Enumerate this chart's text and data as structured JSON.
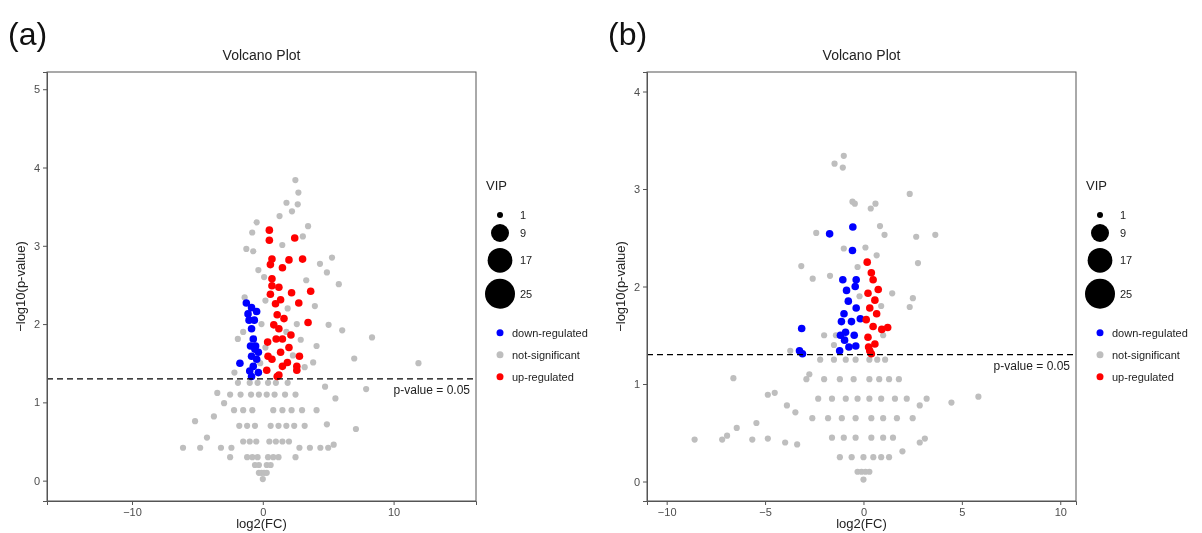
{
  "chart_data": [
    {
      "type": "bubble",
      "title": "Volcano Plot",
      "xlabel": "log2(FC)",
      "ylabel": "−log10(p-value)",
      "legend_title": "VIP",
      "annotations": [
        "(a)",
        "p-value = 0.05"
      ],
      "xlim": [
        -16.5,
        16.3
      ],
      "ylim": [
        -0.26,
        5.22
      ],
      "xticks": [
        -10,
        0,
        10
      ],
      "yticks": [
        0,
        1,
        2,
        3,
        4,
        5
      ],
      "size_legend": [
        1,
        9,
        17,
        25
      ],
      "legend": "right",
      "grid": false,
      "ref_lines": [
        {
          "axis": "y",
          "value": 1.301,
          "line_style": "dashed",
          "color": "#000000"
        }
      ],
      "series": [
        {
          "name": "down-regulated",
          "color": "#0000ff",
          "x": [
            -1.26,
            -0.86,
            -0.47,
            -1.13,
            -1.05,
            -0.65,
            -1.75,
            -0.86,
            -0.73,
            -0.6,
            -0.86,
            -0.47,
            -0.73,
            -0.34,
            -0.86,
            -0.55,
            -0.94,
            -0.34,
            -1.0
          ],
          "values": [
            2.27,
            2.21,
            2.16,
            2.13,
            2.05,
            2.05,
            1.5,
            1.94,
            1.81,
            1.68,
            1.59,
            1.55,
            1.46,
            1.38,
            1.33,
            1.72,
            1.72,
            1.64,
            1.4
          ],
          "sizes": [
            1.6,
            1.6,
            1.6,
            1.6,
            1.6,
            1.6,
            1.6,
            1.6,
            1.6,
            1.6,
            1.6,
            1.6,
            1.6,
            1.6,
            1.6,
            1.6,
            1.6,
            1.6,
            1.6
          ]
        },
        {
          "name": "not-significant",
          "type": "scatter",
          "color": "#bebebe",
          "x": [
            2.49,
            2.72,
            1.81,
            2.67,
            2.23,
            1.28,
            -0.47,
            3.46,
            -0.81,
            -1.26,
            5.29,
            4.9,
            5.81,
            4.37,
            8.35,
            11.9,
            6.99,
            6.07,
            5.03,
            7.12,
            7.9,
            -6.1,
            -5.18,
            -4.79,
            -3.48,
            -3.74,
            -4.27,
            5.42,
            4.9,
            5.55,
            4.76,
            4.11,
            -2.96,
            -2.17,
            -1.91,
            -1.39,
            -0.34,
            -0.73,
            1.49,
            3.06,
            3.32,
            3.98,
            4.11,
            3.85,
            0,
            -0.3,
            -0.1,
            0.1,
            0.3,
            -0.6,
            -0.3,
            0.3,
            0.6,
            -1.2,
            -0.8,
            -0.4,
            0.4,
            0.8,
            1.2,
            -2.5,
            2.5,
            -3.2,
            -2.4,
            2.8,
            3.6,
            4.4,
            5.0,
            -1.5,
            -1,
            -0.5,
            0.5,
            1,
            1.5,
            2,
            -1.8,
            -1.2,
            -0.6,
            0.6,
            1.2,
            1.8,
            2.4,
            3.2,
            -2.2,
            -1.5,
            -0.8,
            0.8,
            1.5,
            2.2,
            3.0,
            -2.5,
            -1.7,
            -0.9,
            -0.3,
            0.3,
            0.9,
            1.7,
            2.5,
            -1.9,
            -1.0,
            -0.4,
            0.4,
            1.0,
            1.9,
            -0.2,
            0.2,
            -0.1,
            0.2,
            1.8,
            2.3,
            2.6,
            0.1,
            1.9,
            -1.5,
            2.9,
            3.2
          ],
          "values": [
            3.84,
            3.68,
            3.55,
            3.53,
            3.44,
            3.38,
            3.3,
            3.25,
            3.17,
            2.96,
            2.85,
            2.66,
            2.51,
            2.77,
            1.83,
            1.5,
            1.56,
            1.92,
            1.99,
            0.66,
            1.17,
            0.42,
            0.76,
            0.42,
            1.12,
            0.82,
            0.55,
            0.46,
            0.72,
            1.05,
            1.2,
            0.9,
            0.99,
            1.38,
            1.81,
            2.34,
            2.69,
            2.93,
            3.01,
            3.12,
            2.56,
            2.23,
            1.72,
            1.51,
            0.02,
            0.1,
            0.1,
            0.1,
            0.1,
            0.2,
            0.2,
            0.2,
            0.2,
            0.3,
            0.3,
            0.3,
            0.3,
            0.3,
            0.3,
            0.3,
            0.3,
            0.42,
            0.42,
            0.42,
            0.42,
            0.42,
            0.42,
            0.5,
            0.5,
            0.5,
            0.5,
            0.5,
            0.5,
            0.5,
            0.7,
            0.7,
            0.7,
            0.7,
            0.7,
            0.7,
            0.7,
            0.7,
            0.9,
            0.9,
            0.9,
            0.9,
            0.9,
            0.9,
            0.9,
            1.1,
            1.1,
            1.1,
            1.1,
            1.1,
            1.1,
            1.1,
            1.1,
            1.25,
            1.25,
            1.25,
            1.25,
            1.25,
            1.25,
            1.5,
            1.7,
            2.0,
            2.3,
            1.9,
            1.6,
            2.0,
            2.6,
            2.2,
            1.9,
            1.8,
            1.45
          ]
        },
        {
          "name": "up-regulated",
          "color": "#ff0000",
          "x": [
            0.5,
            0.5,
            2.44,
            3.04,
            2.0,
            1.5,
            0.58,
            0.7,
            0.7,
            0.7,
            1.23,
            2.2,
            3.66,
            2.75,
            3.46,
            2.15,
            2.0,
            2.8,
            2.6,
            2.6,
            0.37,
            0.4,
            0.3,
            1.23,
            1.5,
            0.97,
            1.1,
            0.84,
            1.23,
            1.02,
            1.36,
            1.5,
            0.7,
            1.1,
            1.62,
            1.88,
            0.58,
            1.36
          ],
          "values": [
            3.2,
            3.07,
            3.1,
            2.83,
            2.82,
            2.72,
            2.76,
            2.83,
            2.58,
            2.49,
            2.47,
            2.4,
            2.42,
            2.27,
            2.02,
            1.86,
            1.7,
            1.59,
            1.46,
            1.41,
            1.77,
            1.59,
            1.41,
            1.35,
            1.46,
            2.26,
            2.12,
            1.99,
            1.94,
            1.81,
            1.64,
            1.81,
            1.55,
            1.33,
            2.07,
            1.51,
            2.38,
            2.31
          ],
          "sizes": [
            1.6,
            1.6,
            1.6,
            1.6,
            1.6,
            1.6,
            1.6,
            1.6,
            1.6,
            1.6,
            1.6,
            1.6,
            1.6,
            1.6,
            1.6,
            1.6,
            1.6,
            1.6,
            1.6,
            1.6,
            1.6,
            1.6,
            1.6,
            1.6,
            1.6,
            1.6,
            1.6,
            1.6,
            1.6,
            1.6,
            1.6,
            1.6,
            1.6,
            1.6,
            1.6,
            1.6,
            1.6,
            1.6
          ]
        }
      ]
    },
    {
      "type": "bubble",
      "title": "Volcano Plot",
      "xlabel": "log2(FC)",
      "ylabel": "−log10(p-value)",
      "legend_title": "VIP",
      "annotations": [
        "(b)",
        "p-value = 0.05"
      ],
      "xlim": [
        -11,
        10.8
      ],
      "ylim": [
        -0.2,
        4.2
      ],
      "xticks": [
        -10,
        -5,
        0,
        5,
        10
      ],
      "yticks": [
        0,
        1,
        2,
        3,
        4
      ],
      "size_legend": [
        1,
        9,
        17,
        25
      ],
      "legend": "right",
      "grid": false,
      "ref_lines": [
        {
          "axis": "y",
          "value": 1.301,
          "line_style": "dashed",
          "color": "#000000"
        }
      ],
      "series": [
        {
          "name": "down-regulated",
          "color": "#0000ff",
          "x": [
            -0.54,
            -1.72,
            -0.56,
            -1.05,
            -0.37,
            -0.86,
            -0.42,
            -0.77,
            -0.37,
            -0.99,
            -0.61,
            -1.12,
            -0.16,
            -0.91,
            -0.47,
            -1.17,
            -0.96,
            -0.74,
            -0.39,
            -1.21,
            -3.14,
            -3.25,
            -3.1
          ],
          "values": [
            2.61,
            2.54,
            2.37,
            2.07,
            2.07,
            1.96,
            2.0,
            1.85,
            1.78,
            1.72,
            1.64,
            1.64,
            1.67,
            1.53,
            1.5,
            1.5,
            1.45,
            1.38,
            1.39,
            1.34,
            1.57,
            1.34,
            1.31
          ],
          "sizes": [
            1.6,
            1.6,
            1.6,
            1.6,
            1.6,
            1.6,
            1.6,
            1.6,
            1.6,
            1.6,
            1.6,
            1.6,
            1.6,
            1.6,
            1.6,
            1.6,
            1.6,
            1.6,
            1.6,
            1.6,
            1.6,
            1.6,
            1.6
          ]
        },
        {
          "name": "not-significant",
          "type": "scatter",
          "color": "#bebebe",
          "x": [
            -1.0,
            -1.47,
            -1.05,
            2.35,
            -0.56,
            -0.44,
            0.61,
            0.37,
            0.84,
            1.07,
            -2.4,
            2.68,
            3.65,
            2.77,
            -3.16,
            -2.58,
            1.46,
            2.51,
            2.35,
            -1.7,
            0.67,
            -1.0,
            5.84,
            4.47,
            2.86,
            3.21,
            -6.61,
            -8.58,
            -7.18,
            -6.93,
            -6.44,
            -5.44,
            -4.86,
            -4.51,
            -4.86,
            -5.65,
            -3.98,
            -3.89,
            -3.46,
            -3.37,
            2.86,
            3.12,
            1.98,
            -3.72,
            -2.75,
            0,
            -0.3,
            -0.1,
            0.1,
            0.3,
            -1.2,
            -0.6,
            0,
            0.5,
            0.9,
            1.3,
            -1.6,
            -1.0,
            -0.4,
            0.4,
            1.0,
            1.5,
            -2.6,
            -1.8,
            -1.1,
            -0.4,
            0.4,
            1.0,
            1.7,
            2.5,
            -2.3,
            -1.6,
            -0.9,
            -0.3,
            0.3,
            0.9,
            1.6,
            2.2,
            -2.9,
            -2.0,
            -1.2,
            -0.5,
            0.3,
            0.8,
            1.3,
            1.8,
            -2.2,
            -1.5,
            -0.9,
            -0.4,
            0.3,
            0.7,
            1.1,
            -1.4,
            -0.2,
            0.1,
            0.9,
            -1.5,
            1.0,
            -0.3,
            -2.0
          ],
          "values": [
            3.34,
            3.26,
            3.22,
            2.95,
            2.87,
            2.85,
            2.85,
            2.8,
            2.62,
            2.53,
            2.55,
            2.51,
            2.53,
            2.24,
            2.21,
            2.08,
            1.93,
            1.88,
            1.79,
            2.11,
            2.32,
            2.39,
            0.87,
            0.81,
            0.78,
            0.85,
            1.06,
            0.43,
            0.43,
            0.47,
            0.55,
            0.6,
            0.89,
            0.91,
            0.44,
            0.43,
            0.4,
            0.78,
            0.71,
            0.38,
            0.4,
            0.44,
            0.31,
            1.34,
            1.1,
            0.02,
            0.1,
            0.1,
            0.1,
            0.1,
            0.25,
            0.25,
            0.25,
            0.25,
            0.25,
            0.25,
            0.45,
            0.45,
            0.45,
            0.45,
            0.45,
            0.45,
            0.65,
            0.65,
            0.65,
            0.65,
            0.65,
            0.65,
            0.65,
            0.65,
            0.85,
            0.85,
            0.85,
            0.85,
            0.85,
            0.85,
            0.85,
            0.85,
            1.05,
            1.05,
            1.05,
            1.05,
            1.05,
            1.05,
            1.05,
            1.05,
            1.25,
            1.25,
            1.25,
            1.25,
            1.25,
            1.25,
            1.25,
            1.5,
            1.9,
            2.4,
            1.8,
            1.4,
            1.5,
            2.2,
            1.5
          ]
        },
        {
          "name": "up-regulated",
          "color": "#ff0000",
          "x": [
            0.19,
            0.4,
            0.49,
            0.23,
            0.58,
            0.32,
            0.67,
            0.14,
            0.49,
            0.23,
            0.58,
            0.32,
            0.4,
            0.93,
            1.23,
            0.75,
            0.26
          ],
          "values": [
            2.25,
            2.14,
            2.07,
            1.93,
            1.86,
            1.78,
            1.72,
            1.66,
            1.59,
            1.48,
            1.41,
            1.34,
            1.31,
            1.56,
            1.58,
            1.97,
            1.38
          ],
          "sizes": [
            1.6,
            1.6,
            1.6,
            1.6,
            1.6,
            1.6,
            1.6,
            1.6,
            1.6,
            1.6,
            1.6,
            1.6,
            1.6,
            1.6,
            1.6,
            1.6,
            1.6
          ]
        }
      ]
    }
  ]
}
